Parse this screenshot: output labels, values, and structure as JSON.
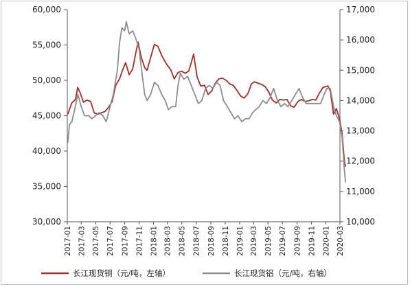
{
  "chart_data": {
    "type": "line",
    "title": "",
    "x_range": [
      "2017-01",
      "2020-03"
    ],
    "x_tick_labels": [
      "2017-01",
      "2017-03",
      "2017-05",
      "2017-07",
      "2017-09",
      "2017-11",
      "2018-01",
      "2018-03",
      "2018-05",
      "2018-07",
      "2018-09",
      "2018-11",
      "2019-01",
      "2019-03",
      "2019-05",
      "2019-07",
      "2019-09",
      "2019-11",
      "2020-01",
      "2020-03"
    ],
    "left_axis": {
      "ylim": [
        30000,
        60000
      ],
      "ticks": [
        30000,
        35000,
        40000,
        45000,
        50000,
        55000,
        60000
      ],
      "tick_labels": [
        "30,000",
        "35,000",
        "40,000",
        "45,000",
        "50,000",
        "55,000",
        "60,000"
      ]
    },
    "right_axis": {
      "ylim": [
        10000,
        17000
      ],
      "ticks": [
        10000,
        11000,
        12000,
        13000,
        14000,
        15000,
        16000,
        17000
      ],
      "tick_labels": [
        "10,000",
        "11,000",
        "12,000",
        "13,000",
        "14,000",
        "15,000",
        "16,000",
        "17,000"
      ]
    },
    "grid": false,
    "legend_position": "bottom",
    "series": [
      {
        "name": "长江现货铜（元/吨，左轴）",
        "axis": "left",
        "color": "#a52a2a",
        "points": [
          [
            "2017-01-03",
            45200
          ],
          [
            "2017-01-20",
            46800
          ],
          [
            "2017-02-05",
            47300
          ],
          [
            "2017-02-14",
            49000
          ],
          [
            "2017-02-25",
            48200
          ],
          [
            "2017-03-10",
            46900
          ],
          [
            "2017-03-25",
            47200
          ],
          [
            "2017-04-10",
            47000
          ],
          [
            "2017-04-25",
            45400
          ],
          [
            "2017-05-10",
            45200
          ],
          [
            "2017-05-25",
            45400
          ],
          [
            "2017-06-10",
            45600
          ],
          [
            "2017-06-25",
            46200
          ],
          [
            "2017-07-10",
            47000
          ],
          [
            "2017-07-25",
            49300
          ],
          [
            "2017-08-10",
            50200
          ],
          [
            "2017-08-25",
            51600
          ],
          [
            "2017-09-05",
            52500
          ],
          [
            "2017-09-20",
            50800
          ],
          [
            "2017-10-05",
            51600
          ],
          [
            "2017-10-20",
            54200
          ],
          [
            "2017-10-28",
            55400
          ],
          [
            "2017-11-10",
            53300
          ],
          [
            "2017-11-25",
            51800
          ],
          [
            "2017-12-05",
            51400
          ],
          [
            "2017-12-20",
            53200
          ],
          [
            "2018-01-05",
            55100
          ],
          [
            "2018-01-20",
            54800
          ],
          [
            "2018-02-05",
            53500
          ],
          [
            "2018-02-25",
            52300
          ],
          [
            "2018-03-15",
            51500
          ],
          [
            "2018-03-30",
            50200
          ],
          [
            "2018-04-15",
            51100
          ],
          [
            "2018-04-30",
            51300
          ],
          [
            "2018-05-15",
            51000
          ],
          [
            "2018-05-30",
            51300
          ],
          [
            "2018-06-10",
            52500
          ],
          [
            "2018-06-20",
            53700
          ],
          [
            "2018-07-05",
            50500
          ],
          [
            "2018-07-20",
            49200
          ],
          [
            "2018-08-05",
            49300
          ],
          [
            "2018-08-20",
            48000
          ],
          [
            "2018-09-05",
            48500
          ],
          [
            "2018-09-20",
            49600
          ],
          [
            "2018-10-05",
            50200
          ],
          [
            "2018-10-20",
            50300
          ],
          [
            "2018-11-05",
            50000
          ],
          [
            "2018-11-20",
            49500
          ],
          [
            "2018-12-05",
            49300
          ],
          [
            "2018-12-20",
            48600
          ],
          [
            "2019-01-05",
            47800
          ],
          [
            "2019-01-20",
            47500
          ],
          [
            "2019-02-05",
            48100
          ],
          [
            "2019-02-20",
            49500
          ],
          [
            "2019-03-05",
            49800
          ],
          [
            "2019-03-20",
            49600
          ],
          [
            "2019-04-05",
            49400
          ],
          [
            "2019-04-20",
            49100
          ],
          [
            "2019-05-05",
            48300
          ],
          [
            "2019-05-20",
            47200
          ],
          [
            "2019-06-05",
            46800
          ],
          [
            "2019-06-20",
            47300
          ],
          [
            "2019-07-05",
            47200
          ],
          [
            "2019-07-20",
            47300
          ],
          [
            "2019-08-05",
            46400
          ],
          [
            "2019-08-20",
            46200
          ],
          [
            "2019-09-05",
            47000
          ],
          [
            "2019-09-20",
            47300
          ],
          [
            "2019-10-05",
            47000
          ],
          [
            "2019-10-20",
            47100
          ],
          [
            "2019-11-05",
            47300
          ],
          [
            "2019-11-20",
            47200
          ],
          [
            "2019-12-05",
            48200
          ],
          [
            "2019-12-20",
            49000
          ],
          [
            "2020-01-10",
            49200
          ],
          [
            "2020-01-20",
            48500
          ],
          [
            "2020-02-03",
            45200
          ],
          [
            "2020-02-15",
            46000
          ],
          [
            "2020-02-28",
            44600
          ],
          [
            "2020-03-10",
            42500
          ],
          [
            "2020-03-20",
            38500
          ],
          [
            "2020-03-25",
            37800
          ]
        ]
      },
      {
        "name": "长江现货铝（元/吨，右轴）",
        "axis": "right",
        "color": "#8c8c8c",
        "points": [
          [
            "2017-01-03",
            12600
          ],
          [
            "2017-01-10",
            13200
          ],
          [
            "2017-01-20",
            13300
          ],
          [
            "2017-02-01",
            13700
          ],
          [
            "2017-02-15",
            14200
          ],
          [
            "2017-03-01",
            13800
          ],
          [
            "2017-03-15",
            13500
          ],
          [
            "2017-04-01",
            13500
          ],
          [
            "2017-04-15",
            13400
          ],
          [
            "2017-05-01",
            13500
          ],
          [
            "2017-05-15",
            13600
          ],
          [
            "2017-06-01",
            13500
          ],
          [
            "2017-06-15",
            13300
          ],
          [
            "2017-07-01",
            13800
          ],
          [
            "2017-07-15",
            14200
          ],
          [
            "2017-08-01",
            15000
          ],
          [
            "2017-08-10",
            15900
          ],
          [
            "2017-08-20",
            16400
          ],
          [
            "2017-09-01",
            16300
          ],
          [
            "2017-09-08",
            16600
          ],
          [
            "2017-09-20",
            16200
          ],
          [
            "2017-10-05",
            16300
          ],
          [
            "2017-10-20",
            16000
          ],
          [
            "2017-11-01",
            15700
          ],
          [
            "2017-11-15",
            14800
          ],
          [
            "2017-11-25",
            14200
          ],
          [
            "2017-12-05",
            14000
          ],
          [
            "2017-12-20",
            14200
          ],
          [
            "2018-01-05",
            14600
          ],
          [
            "2018-01-20",
            14500
          ],
          [
            "2018-02-05",
            14200
          ],
          [
            "2018-02-20",
            14000
          ],
          [
            "2018-03-05",
            13700
          ],
          [
            "2018-03-20",
            13800
          ],
          [
            "2018-04-05",
            13800
          ],
          [
            "2018-04-15",
            14500
          ],
          [
            "2018-04-25",
            14900
          ],
          [
            "2018-05-10",
            14700
          ],
          [
            "2018-05-25",
            14800
          ],
          [
            "2018-06-10",
            14500
          ],
          [
            "2018-06-25",
            14200
          ],
          [
            "2018-07-10",
            13900
          ],
          [
            "2018-07-25",
            14000
          ],
          [
            "2018-08-10",
            14400
          ],
          [
            "2018-08-25",
            14500
          ],
          [
            "2018-09-10",
            14400
          ],
          [
            "2018-09-25",
            14600
          ],
          [
            "2018-10-10",
            14500
          ],
          [
            "2018-10-25",
            14000
          ],
          [
            "2018-11-10",
            13800
          ],
          [
            "2018-11-25",
            13600
          ],
          [
            "2018-12-10",
            13400
          ],
          [
            "2018-12-25",
            13500
          ],
          [
            "2019-01-10",
            13300
          ],
          [
            "2019-01-25",
            13400
          ],
          [
            "2019-02-10",
            13400
          ],
          [
            "2019-02-25",
            13600
          ],
          [
            "2019-03-10",
            13700
          ],
          [
            "2019-03-25",
            13800
          ],
          [
            "2019-04-10",
            14000
          ],
          [
            "2019-04-25",
            13900
          ],
          [
            "2019-05-10",
            14100
          ],
          [
            "2019-05-25",
            14400
          ],
          [
            "2019-06-10",
            14000
          ],
          [
            "2019-06-25",
            13800
          ],
          [
            "2019-07-10",
            13900
          ],
          [
            "2019-07-25",
            13800
          ],
          [
            "2019-08-10",
            14000
          ],
          [
            "2019-08-25",
            14200
          ],
          [
            "2019-09-10",
            14400
          ],
          [
            "2019-09-25",
            14100
          ],
          [
            "2019-10-10",
            13900
          ],
          [
            "2019-10-25",
            13900
          ],
          [
            "2019-11-10",
            13900
          ],
          [
            "2019-11-25",
            13900
          ],
          [
            "2019-12-10",
            13900
          ],
          [
            "2019-12-25",
            14200
          ],
          [
            "2020-01-05",
            14400
          ],
          [
            "2020-01-20",
            14400
          ],
          [
            "2020-02-03",
            13800
          ],
          [
            "2020-02-15",
            13500
          ],
          [
            "2020-02-28",
            13300
          ],
          [
            "2020-03-10",
            12800
          ],
          [
            "2020-03-20",
            11700
          ],
          [
            "2020-03-25",
            11300
          ]
        ]
      }
    ]
  }
}
